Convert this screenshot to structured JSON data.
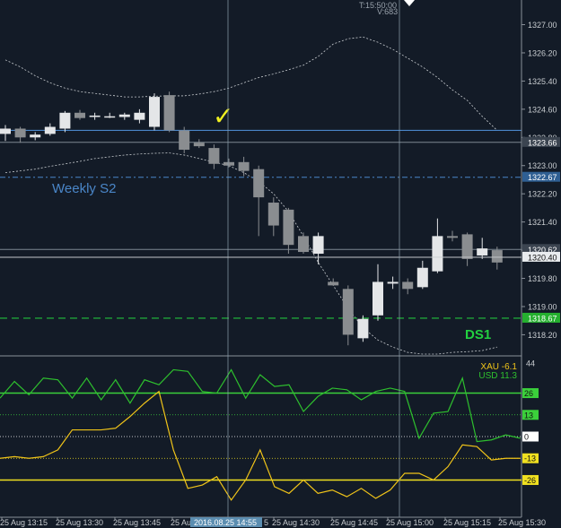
{
  "header": {
    "time_label": "T:15:50:00",
    "volume_label": "V:683"
  },
  "levels": {
    "weekly_s2": {
      "label": "Weekly S2",
      "price": 1322.67,
      "color": "#4a86c8"
    },
    "blue_line": {
      "price": 1324.0,
      "color": "#4a86c8"
    },
    "grey_line_a": {
      "price": 1323.66
    },
    "grey_line_b": {
      "price": 1320.62
    },
    "grey_line_c": {
      "price": 1320.4
    },
    "ds1": {
      "label": "DS1",
      "price": 1318.67,
      "color": "#22c03c"
    }
  },
  "crosshair": {
    "x_label": "2016.08.25 14:55",
    "y_label": "1320.40"
  },
  "checkmark": "✓",
  "chart_data": [
    {
      "type": "candlestick",
      "title": "",
      "ylim": [
        1317.6,
        1327.7
      ],
      "y_ticks": [
        "1327.00",
        "1326.20",
        "1325.40",
        "1324.60",
        "1323.80",
        "1323.00",
        "1322.20",
        "1321.40",
        "1320.60",
        "1319.80",
        "1319.00",
        "1318.20"
      ],
      "price_labels": [
        {
          "text": "1323.66",
          "value": 1323.66,
          "style": "grey"
        },
        {
          "text": "1322.67",
          "value": 1322.67,
          "style": "blue"
        },
        {
          "text": "1320.62",
          "value": 1320.62,
          "style": "grey"
        },
        {
          "text": "1320.40",
          "value": 1320.4,
          "style": "white"
        },
        {
          "text": "1318.67",
          "value": 1318.67,
          "style": "green"
        }
      ],
      "candles": [
        {
          "o": 1323.9,
          "h": 1324.15,
          "l": 1323.7,
          "c": 1324.05
        },
        {
          "o": 1324.05,
          "h": 1324.1,
          "l": 1323.65,
          "c": 1323.8
        },
        {
          "o": 1323.8,
          "h": 1323.95,
          "l": 1323.72,
          "c": 1323.88
        },
        {
          "o": 1323.9,
          "h": 1324.2,
          "l": 1323.85,
          "c": 1324.1
        },
        {
          "o": 1324.05,
          "h": 1324.55,
          "l": 1323.95,
          "c": 1324.5
        },
        {
          "o": 1324.5,
          "h": 1324.58,
          "l": 1324.3,
          "c": 1324.35
        },
        {
          "o": 1324.38,
          "h": 1324.5,
          "l": 1324.3,
          "c": 1324.42
        },
        {
          "o": 1324.4,
          "h": 1324.5,
          "l": 1324.35,
          "c": 1324.4
        },
        {
          "o": 1324.38,
          "h": 1324.5,
          "l": 1324.3,
          "c": 1324.45
        },
        {
          "o": 1324.3,
          "h": 1324.6,
          "l": 1324.2,
          "c": 1324.5
        },
        {
          "o": 1324.1,
          "h": 1325.05,
          "l": 1324.0,
          "c": 1324.95
        },
        {
          "o": 1325.0,
          "h": 1325.1,
          "l": 1323.95,
          "c": 1324.0
        },
        {
          "o": 1324.0,
          "h": 1324.1,
          "l": 1323.35,
          "c": 1323.45
        },
        {
          "o": 1323.65,
          "h": 1323.75,
          "l": 1323.5,
          "c": 1323.55
        },
        {
          "o": 1323.5,
          "h": 1323.6,
          "l": 1322.9,
          "c": 1323.05
        },
        {
          "o": 1323.1,
          "h": 1323.2,
          "l": 1322.95,
          "c": 1323.0
        },
        {
          "o": 1323.1,
          "h": 1323.25,
          "l": 1322.7,
          "c": 1322.85
        },
        {
          "o": 1322.9,
          "h": 1323.0,
          "l": 1321.0,
          "c": 1322.1
        },
        {
          "o": 1321.95,
          "h": 1322.1,
          "l": 1321.0,
          "c": 1321.3
        },
        {
          "o": 1321.75,
          "h": 1321.8,
          "l": 1320.5,
          "c": 1320.75
        },
        {
          "o": 1321.0,
          "h": 1321.1,
          "l": 1320.5,
          "c": 1320.55
        },
        {
          "o": 1320.5,
          "h": 1321.1,
          "l": 1320.2,
          "c": 1321.0
        },
        {
          "o": 1319.7,
          "h": 1319.8,
          "l": 1319.6,
          "c": 1319.6
        },
        {
          "o": 1319.5,
          "h": 1319.6,
          "l": 1317.9,
          "c": 1318.2
        },
        {
          "o": 1318.1,
          "h": 1318.75,
          "l": 1318.0,
          "c": 1318.65
        },
        {
          "o": 1318.75,
          "h": 1320.2,
          "l": 1318.6,
          "c": 1319.7
        },
        {
          "o": 1319.65,
          "h": 1319.85,
          "l": 1319.5,
          "c": 1319.7
        },
        {
          "o": 1319.7,
          "h": 1319.8,
          "l": 1319.35,
          "c": 1319.5
        },
        {
          "o": 1319.55,
          "h": 1320.3,
          "l": 1319.5,
          "c": 1320.1
        },
        {
          "o": 1320.0,
          "h": 1321.5,
          "l": 1319.95,
          "c": 1321.0
        },
        {
          "o": 1321.0,
          "h": 1321.15,
          "l": 1320.85,
          "c": 1320.95
        },
        {
          "o": 1321.05,
          "h": 1321.1,
          "l": 1320.15,
          "c": 1320.35
        },
        {
          "o": 1320.45,
          "h": 1320.95,
          "l": 1320.35,
          "c": 1320.65
        },
        {
          "o": 1320.6,
          "h": 1320.7,
          "l": 1320.05,
          "c": 1320.25
        }
      ],
      "bollinger_upper": [
        1326.0,
        1325.8,
        1325.55,
        1325.35,
        1325.2,
        1325.1,
        1325.05,
        1325.0,
        1324.95,
        1324.95,
        1324.97,
        1324.98,
        1324.98,
        1325.03,
        1325.1,
        1325.2,
        1325.35,
        1325.5,
        1325.6,
        1325.72,
        1325.85,
        1326.1,
        1326.45,
        1326.6,
        1326.65,
        1326.5,
        1326.3,
        1326.05,
        1325.8,
        1325.5,
        1325.15,
        1324.85,
        1324.4,
        1324.0
      ],
      "bollinger_lower": [
        1322.8,
        1322.85,
        1322.9,
        1322.98,
        1323.05,
        1323.12,
        1323.2,
        1323.25,
        1323.3,
        1323.33,
        1323.35,
        1323.36,
        1323.3,
        1323.2,
        1323.1,
        1323.0,
        1322.8,
        1322.55,
        1322.2,
        1321.7,
        1321.0,
        1320.25,
        1319.6,
        1318.95,
        1318.4,
        1318.05,
        1317.85,
        1317.7,
        1317.65,
        1317.65,
        1317.7,
        1317.72,
        1317.75,
        1317.85
      ]
    },
    {
      "type": "line",
      "title": "",
      "ylim": [
        -44,
        44
      ],
      "y_ticks": [
        "44"
      ],
      "series": [
        {
          "name": "XAU -6.1",
          "color": "#f0c419",
          "values": [
            -13,
            -12,
            -13,
            -12,
            -8,
            4,
            4,
            4,
            5,
            12,
            20,
            27,
            -8,
            -31,
            -29,
            -24,
            -38,
            -26,
            -8,
            -30,
            -34,
            -26,
            -34,
            -32,
            -36,
            -31,
            -37,
            -32,
            -22,
            -22,
            -26,
            -18,
            -5,
            -6,
            -14,
            -13,
            -13
          ]
        },
        {
          "name": "USD 11.3",
          "color": "#2ec02e",
          "values": [
            23,
            33,
            25,
            35,
            34,
            23,
            35,
            22,
            34,
            20,
            34,
            31,
            40,
            39,
            27,
            26,
            40,
            23,
            37,
            30,
            31,
            15,
            24,
            29,
            28,
            22,
            27,
            29,
            27,
            -1,
            14,
            15,
            35,
            -3,
            -2,
            1,
            -1
          ]
        }
      ],
      "levels": [
        {
          "text": "26",
          "value": 26,
          "color": "#3bd03b",
          "style": "solid"
        },
        {
          "text": "13",
          "value": 13,
          "color": "#3bd03b",
          "style": "dotted"
        },
        {
          "text": "0",
          "value": 0,
          "color": "#ffffff",
          "style": "dotted"
        },
        {
          "text": "-13",
          "value": -13,
          "color": "#f0e020",
          "style": "dotted"
        },
        {
          "text": "-26",
          "value": -26,
          "color": "#f0e020",
          "style": "solid"
        }
      ]
    }
  ],
  "x_axis": {
    "labels": [
      "25 Aug 13:15",
      "25 Aug 13:30",
      "25 Aug 13:45",
      "25 Aug",
      "",
      "25 Aug 14:30",
      "25 Aug 14:45",
      "25 Aug 15:00",
      "25 Aug 15:15",
      "25 Aug 15:30"
    ]
  }
}
